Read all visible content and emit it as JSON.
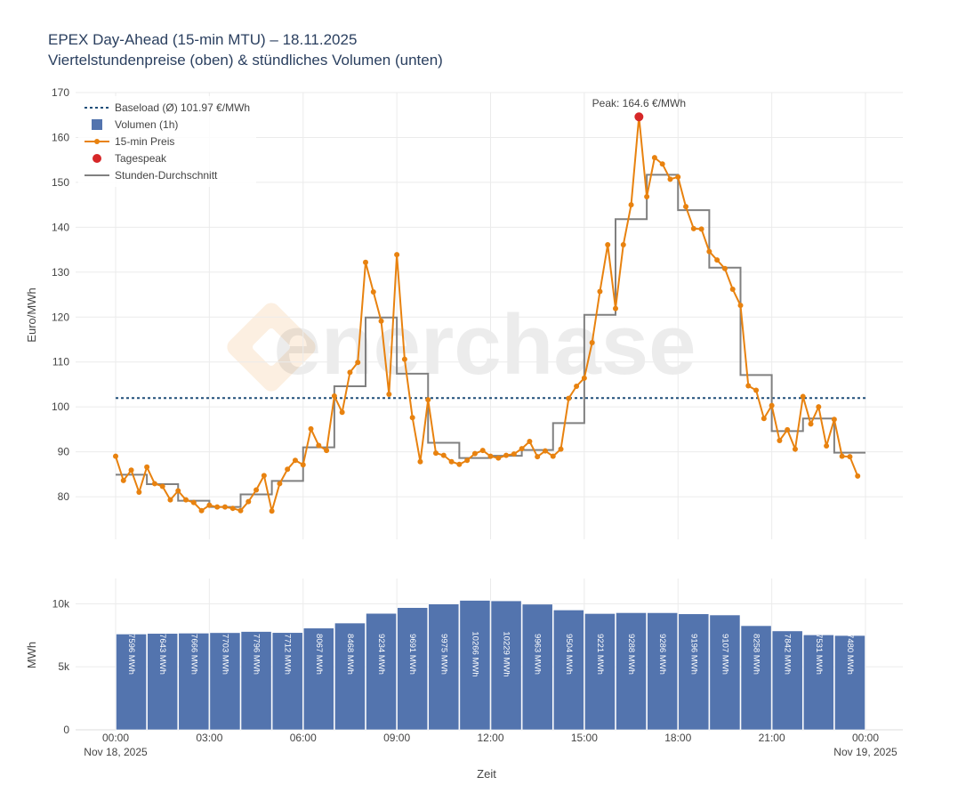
{
  "colors": {
    "price": "#e8820f",
    "volume": "#5374ae",
    "hourly": "#808080",
    "baseload": "#1f4e79",
    "peak": "#d62728",
    "grid": "#ebebeb",
    "text": "#444444",
    "title": "#2a3f5f"
  },
  "chart_data": [
    {
      "type": "line",
      "title": "EPEX Day-Ahead (15-min MTU) – 18.11.2025",
      "subtitle": "Viertelstundenpreise (oben) & stündliches Volumen (unten)",
      "ylabel": "Euro/MWh",
      "ylim": [
        70.5,
        170
      ],
      "yticks": [
        "80",
        "90",
        "100",
        "110",
        "120",
        "130",
        "140",
        "150",
        "160",
        "170"
      ],
      "legend_position": "top-left",
      "legend": [
        "Baseload (Ø) 101.97 €/MWh",
        "Volumen (1h)",
        "15-min Preis",
        "Tagespeak",
        "Stunden-Durchschnitt"
      ],
      "baseload": 101.97,
      "peak": {
        "hour": 16.75,
        "value": 164.6,
        "label": "Peak: 164.6 €/MWh"
      },
      "series": [
        {
          "name": "15-min Preis",
          "x_unit": "hours from 00:00, 0.25 step",
          "values": [
            89.0,
            83.6,
            85.9,
            81.0,
            86.6,
            82.9,
            82.3,
            79.3,
            81.3,
            79.3,
            78.7,
            76.9,
            78.1,
            77.7,
            77.7,
            77.4,
            76.9,
            78.9,
            81.5,
            84.7,
            76.8,
            82.9,
            86.1,
            88.1,
            87.1,
            95.1,
            91.4,
            90.3,
            102.4,
            98.8,
            107.7,
            109.9,
            132.2,
            125.6,
            119.1,
            102.8,
            133.9,
            110.6,
            97.6,
            87.8,
            101.6,
            89.7,
            89.2,
            87.8,
            87.2,
            88.1,
            89.6,
            90.3,
            89.0,
            88.6,
            89.2,
            89.5,
            90.7,
            92.3,
            88.9,
            90.2,
            89.0,
            90.6,
            101.9,
            104.6,
            106.4,
            114.3,
            125.7,
            136.1,
            121.9,
            136.1,
            145.0,
            164.6,
            146.8,
            155.5,
            154.1,
            150.7,
            151.2,
            144.6,
            139.7,
            139.6,
            134.6,
            132.7,
            130.8,
            126.2,
            122.6,
            104.7,
            103.7,
            97.4,
            100.3,
            92.5,
            94.9,
            90.6,
            102.3,
            96.2,
            100.0,
            91.3,
            97.2,
            89.0,
            88.9,
            84.6
          ]
        },
        {
          "name": "Stunden-Durchschnitt",
          "values": [
            84.9,
            82.8,
            79.1,
            77.7,
            80.5,
            83.5,
            91.0,
            104.6,
            119.9,
            107.4,
            92.0,
            88.6,
            89.1,
            90.4,
            96.4,
            120.5,
            141.8,
            151.7,
            143.8,
            131.0,
            107.1,
            94.6,
            97.4,
            89.8
          ]
        }
      ],
      "x_ticks": [
        "00:00",
        "03:00",
        "06:00",
        "09:00",
        "12:00",
        "15:00",
        "18:00",
        "21:00",
        "00:00"
      ],
      "x_date_start": "Nov 18, 2025",
      "x_date_end": "Nov 19, 2025",
      "watermark": "enerchase"
    },
    {
      "type": "bar",
      "ylabel": "MWh",
      "xlabel": "Zeit",
      "ylim": [
        0,
        12000
      ],
      "yticks": [
        "0",
        "5k",
        "10k"
      ],
      "categories": [
        "00:00",
        "01:00",
        "02:00",
        "03:00",
        "04:00",
        "05:00",
        "06:00",
        "07:00",
        "08:00",
        "09:00",
        "10:00",
        "11:00",
        "12:00",
        "13:00",
        "14:00",
        "15:00",
        "16:00",
        "17:00",
        "18:00",
        "19:00",
        "20:00",
        "21:00",
        "22:00",
        "23:00"
      ],
      "values": [
        7596,
        7643,
        7666,
        7703,
        7796,
        7712,
        8067,
        8468,
        9234,
        9691,
        9975,
        10266,
        10229,
        9963,
        9504,
        9221,
        9288,
        9286,
        9196,
        9107,
        8258,
        7842,
        7531,
        7480
      ],
      "labels": [
        "7596 MWh",
        "7643 MWh",
        "7666 MWh",
        "7703 MWh",
        "7796 MWh",
        "7712 MWh",
        "8067 MWh",
        "8468 MWh",
        "9234 MWh",
        "9691 MWh",
        "9975 MWh",
        "10266 MWh",
        "10229 MWh",
        "9963 MWh",
        "9504 MWh",
        "9221 MWh",
        "9288 MWh",
        "9286 MWh",
        "9196 MWh",
        "9107 MWh",
        "8258 MWh",
        "7842 MWh",
        "7531 MWh",
        "7480 MWh"
      ]
    }
  ]
}
